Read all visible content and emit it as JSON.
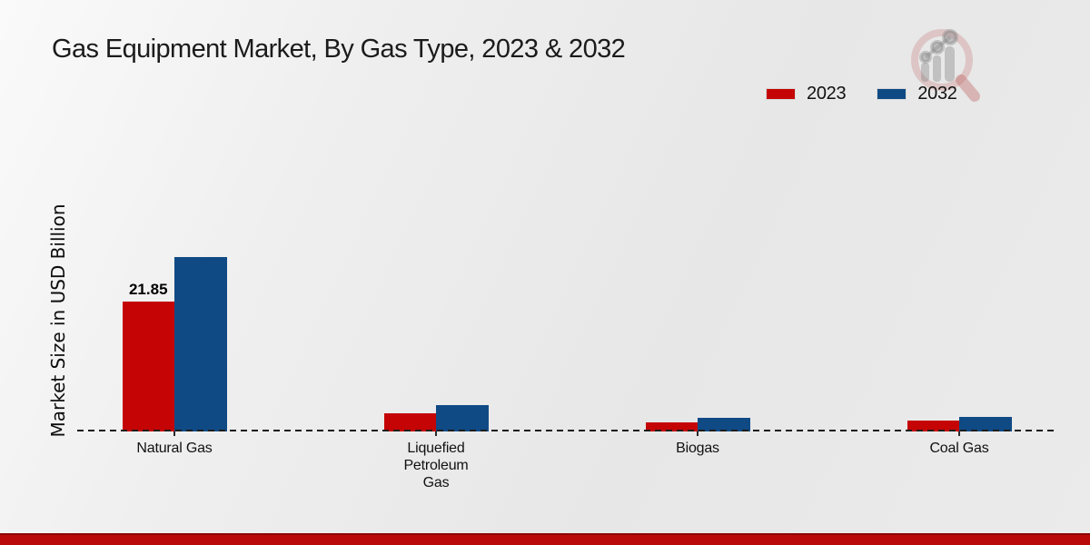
{
  "chart_data": {
    "type": "bar",
    "title": "Gas Equipment Market, By Gas Type, 2023 & 2032",
    "ylabel": "Market Size in USD Billion",
    "xlabel": "",
    "categories": [
      "Natural Gas",
      "Liquefied Petroleum Gas",
      "Biogas",
      "Coal Gas"
    ],
    "series": [
      {
        "name": "2023",
        "color": "#c50505",
        "values": [
          21.85,
          3.1,
          1.6,
          1.9
        ]
      },
      {
        "name": "2032",
        "color": "#0f4a85",
        "values": [
          29.3,
          4.5,
          2.3,
          2.5
        ]
      }
    ],
    "value_labels": [
      {
        "series": "2023",
        "category": "Natural Gas",
        "text": "21.85"
      }
    ],
    "ylim": [
      0,
      30
    ],
    "grid": false,
    "legend_position": "top-right",
    "baseline_style": "dashed",
    "axis_numbers_visible": false
  },
  "watermark": {
    "icon": "magnifier-growth-chart-logo",
    "ring_color": "rgba(201,123,123,0.32)",
    "handle_color": "rgba(190,100,100,0.40)",
    "glyph_color": "rgba(128,128,128,0.38)"
  },
  "footer": {
    "band_color": "#b90909"
  }
}
